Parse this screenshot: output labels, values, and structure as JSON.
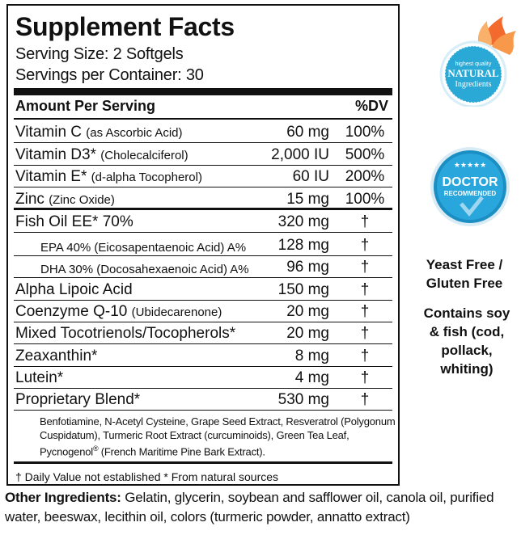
{
  "facts": {
    "title": "Supplement Facts",
    "serving_size": "Serving Size: 2 Softgels",
    "servings_per_container": "Servings per Container: 30",
    "header_amount": "Amount Per Serving",
    "header_dv": "%DV",
    "rows": [
      {
        "name": "Vitamin C",
        "detail": "(as Ascorbic Acid)",
        "amount": "60 mg",
        "dv": "100%"
      },
      {
        "name": "Vitamin D3*",
        "detail": "(Cholecalciferol)",
        "amount": "2,000 IU",
        "dv": "500%"
      },
      {
        "name": "Vitamin E*",
        "detail": "(d-alpha Tocopherol)",
        "amount": "60 IU",
        "dv": "200%"
      },
      {
        "name": "Zinc",
        "detail": "(Zinc Oxide)",
        "amount": "15 mg",
        "dv": "100%"
      },
      {
        "name": "Fish Oil EE* 70%",
        "detail": "",
        "amount": "320 mg",
        "dv": "†"
      },
      {
        "name": "EPA 40% (Eicosapentaenoic Acid) A%",
        "detail": "",
        "amount": "128 mg",
        "dv": "†"
      },
      {
        "name": "DHA 30% (Docosahexaenoic Acid) A%",
        "detail": "",
        "amount": "96 mg",
        "dv": "†"
      },
      {
        "name": "Alpha Lipoic Acid",
        "detail": "",
        "amount": "150 mg",
        "dv": "†"
      },
      {
        "name": "Coenzyme Q-10",
        "detail": "(Ubidecarenone)",
        "amount": "20 mg",
        "dv": "†"
      },
      {
        "name": "Mixed Tocotrienols/Tocopherols*",
        "detail": "",
        "amount": "20 mg",
        "dv": "†"
      },
      {
        "name": "Zeaxanthin*",
        "detail": "",
        "amount": "8 mg",
        "dv": "†"
      },
      {
        "name": "Lutein*",
        "detail": "",
        "amount": "4 mg",
        "dv": "†"
      },
      {
        "name": "Proprietary Blend*",
        "detail": "",
        "amount": "530 mg",
        "dv": "†"
      }
    ],
    "blend_text_1": "Benfotiamine, N-Acetyl Cysteine, Grape Seed Extract, Resveratrol (Polygonum Cuspidatum), Turmeric Root Extract (curcuminoids), Green Tea Leaf, Pycnogenol",
    "blend_reg": "®",
    "blend_text_2": " (French Maritime Pine Bark Extract).",
    "footnote": "† Daily Value not established * From natural sources"
  },
  "other_ingredients": {
    "label": "Other Ingredients:",
    "text": " Gelatin, glycerin, soybean and safflower oil, canola oil, purified water, beeswax, lecithin oil, colors (turmeric powder, annatto extract)"
  },
  "badges": {
    "natural": {
      "line1": "highest quality",
      "line2": "NATURAL",
      "line3": "Ingredients"
    },
    "doctor": {
      "line1": "DOCTOR",
      "line2": "RECOMMENDED"
    }
  },
  "side_notes": {
    "yeast_free": "Yeast Free /",
    "gluten_free": "Gluten Free",
    "allergen": "Contains soy & fish (cod, pollack, whiting)"
  },
  "colors": {
    "natural_badge": "#2aa9d6",
    "flame_orange": "#f26a2e",
    "doctor_badge": "#1b8fc4"
  }
}
